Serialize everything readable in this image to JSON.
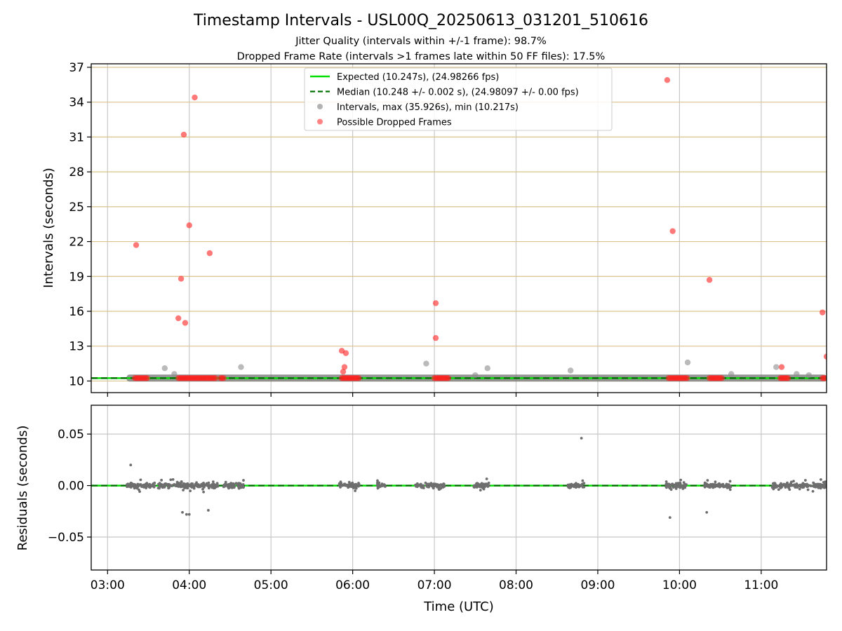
{
  "figure": {
    "title": "Timestamp Intervals - USL00Q_20250613_031201_510616",
    "subtitle_1": "Jitter Quality (intervals within +/-1 frame): 98.7%",
    "subtitle_2": "Dropped Frame Rate (intervals >1 frames late within 50 FF files): 17.5%"
  },
  "legend": {
    "items": [
      {
        "label": "Expected (10.247s), (24.98266 fps)",
        "color": "#00e000",
        "style": "solid-line"
      },
      {
        "label": "Median (10.248 +/- 0.002 s), (24.98097 +/- 0.00 fps)",
        "color": "#007000",
        "style": "dashed-line"
      },
      {
        "label": "Intervals, max (35.926s), min (10.217s)",
        "color": "#808080",
        "style": "marker"
      },
      {
        "label": "Possible Dropped Frames",
        "color": "#ff3030",
        "style": "marker"
      }
    ],
    "placement": "top-center"
  },
  "chart_data": [
    {
      "type": "scatter",
      "panel": "top",
      "xlabel": "",
      "ylabel": "Intervals (seconds)",
      "xlim": [
        "02:48",
        "11:48"
      ],
      "ylim": [
        9.0,
        37.3
      ],
      "yticks": [
        "10",
        "13",
        "16",
        "19",
        "22",
        "25",
        "28",
        "31",
        "34",
        "37"
      ],
      "grid": true,
      "reference_lines": {
        "expected": 10.247,
        "median": 10.248
      },
      "normal_band": {
        "x_start": "03:14",
        "x_end": "11:48",
        "y": 10.25
      },
      "series": [
        {
          "name": "Intervals, max (35.926s), min (10.217s)",
          "color": "#a0a0a0",
          "points": [
            {
              "x": "03:42",
              "y": 11.1
            },
            {
              "x": "03:49",
              "y": 10.6
            },
            {
              "x": "04:38",
              "y": 11.2
            },
            {
              "x": "06:54",
              "y": 11.5
            },
            {
              "x": "07:39",
              "y": 11.1
            },
            {
              "x": "07:30",
              "y": 10.5
            },
            {
              "x": "08:40",
              "y": 10.9
            },
            {
              "x": "10:06",
              "y": 11.6
            },
            {
              "x": "10:38",
              "y": 10.6
            },
            {
              "x": "11:11",
              "y": 11.2
            },
            {
              "x": "11:26",
              "y": 10.6
            },
            {
              "x": "11:35",
              "y": 10.5
            }
          ]
        },
        {
          "name": "Possible Dropped Frames",
          "color": "#ff3030",
          "points": [
            {
              "x": "03:21",
              "y": 21.7
            },
            {
              "x": "03:52",
              "y": 15.4
            },
            {
              "x": "03:54",
              "y": 18.8
            },
            {
              "x": "03:56",
              "y": 31.2
            },
            {
              "x": "03:57",
              "y": 15.0
            },
            {
              "x": "04:00",
              "y": 23.4
            },
            {
              "x": "04:04",
              "y": 34.4
            },
            {
              "x": "04:15",
              "y": 21.0
            },
            {
              "x": "05:52",
              "y": 12.6
            },
            {
              "x": "05:55",
              "y": 12.4
            },
            {
              "x": "05:54",
              "y": 11.2
            },
            {
              "x": "05:53",
              "y": 10.8
            },
            {
              "x": "07:01",
              "y": 16.7
            },
            {
              "x": "07:01",
              "y": 13.7
            },
            {
              "x": "09:51",
              "y": 35.9
            },
            {
              "x": "09:55",
              "y": 22.9
            },
            {
              "x": "10:22",
              "y": 18.7
            },
            {
              "x": "11:15",
              "y": 11.2
            },
            {
              "x": "11:45",
              "y": 15.9
            },
            {
              "x": "11:48",
              "y": 12.1
            }
          ],
          "clusters_at_baseline": [
            {
              "x_start": "03:20",
              "x_end": "03:30"
            },
            {
              "x_start": "03:52",
              "x_end": "04:20"
            },
            {
              "x_start": "04:23",
              "x_end": "04:26"
            },
            {
              "x_start": "05:52",
              "x_end": "06:05"
            },
            {
              "x_start": "07:00",
              "x_end": "07:11"
            },
            {
              "x_start": "09:52",
              "x_end": "10:06"
            },
            {
              "x_start": "10:22",
              "x_end": "10:32"
            },
            {
              "x_start": "11:14",
              "x_end": "11:20"
            },
            {
              "x_start": "11:45",
              "x_end": "11:48"
            }
          ]
        }
      ]
    },
    {
      "type": "scatter",
      "panel": "bottom",
      "xlabel": "Time (UTC)",
      "ylabel": "Residuals (seconds)",
      "xlim": [
        "02:48",
        "11:48"
      ],
      "ylim": [
        -0.082,
        0.078
      ],
      "yticks": [
        "0.05",
        "0.00",
        "−0.05"
      ],
      "xticks": [
        "03:00",
        "04:00",
        "05:00",
        "06:00",
        "07:00",
        "08:00",
        "09:00",
        "10:00",
        "11:00"
      ],
      "grid": true,
      "reference_lines": {
        "expected": 0.0,
        "median": 0.0
      },
      "series": [
        {
          "name": "Residuals",
          "color": "#707070",
          "clusters": [
            {
              "x_start": "03:14",
              "x_end": "03:35"
            },
            {
              "x_start": "03:37",
              "x_end": "04:22"
            },
            {
              "x_start": "04:25",
              "x_end": "04:40"
            },
            {
              "x_start": "05:50",
              "x_end": "06:05"
            },
            {
              "x_start": "06:18",
              "x_end": "06:24"
            },
            {
              "x_start": "06:46",
              "x_end": "07:08"
            },
            {
              "x_start": "07:28",
              "x_end": "07:40"
            },
            {
              "x_start": "08:38",
              "x_end": "08:50"
            },
            {
              "x_start": "09:50",
              "x_end": "10:05"
            },
            {
              "x_start": "10:18",
              "x_end": "10:38"
            },
            {
              "x_start": "11:08",
              "x_end": "11:48"
            }
          ],
          "outliers": [
            {
              "x": "03:17",
              "y": 0.02
            },
            {
              "x": "03:55",
              "y": -0.026
            },
            {
              "x": "03:58",
              "y": -0.028
            },
            {
              "x": "04:00",
              "y": -0.028
            },
            {
              "x": "04:14",
              "y": -0.024
            },
            {
              "x": "08:48",
              "y": 0.046
            },
            {
              "x": "09:53",
              "y": -0.031
            },
            {
              "x": "10:20",
              "y": -0.026
            }
          ]
        }
      ]
    }
  ]
}
